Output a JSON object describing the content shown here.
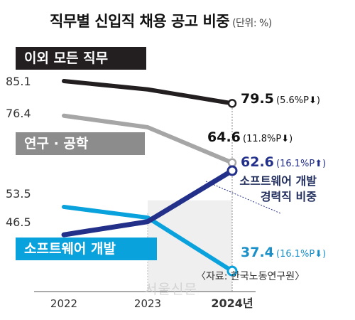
{
  "title": "직무별 신입직 채용 공고 비중",
  "unit": "(단위: %)",
  "source": "〈자료: 한국노동연구원〉",
  "watermark": "서울신문",
  "labels": {
    "other_jobs": "이외 모든 직무",
    "research_eng": "연구 · 공학",
    "sw_dev": "소프트웨어 개발",
    "sw_experienced_line1": "소프트웨어 개발",
    "sw_experienced_line2": "경력직 비중"
  },
  "colors": {
    "other_jobs": "#231f20",
    "research_eng": "#a6a6a6",
    "sw_dev": "#0aa2dc",
    "sw_experienced": "#23308a",
    "shade": "#efefef"
  },
  "chart_data": {
    "type": "line",
    "categories": [
      "2022",
      "2023",
      "2024년"
    ],
    "series": [
      {
        "name": "이외 모든 직무",
        "values": [
          85.1,
          83.0,
          79.5
        ],
        "labels": {
          "start": "85.1",
          "end_value": "79.5",
          "end_change": "(5.6%P⬇)"
        }
      },
      {
        "name": "연구 · 공학",
        "values": [
          76.4,
          73.5,
          64.6
        ],
        "labels": {
          "start": "76.4",
          "end_value": "64.6",
          "end_change": "(11.8%P⬇)"
        }
      },
      {
        "name": "소프트웨어 개발",
        "values": [
          53.5,
          50.8,
          37.4
        ],
        "labels": {
          "start": "53.5",
          "end_value": "37.4",
          "end_change": "(16.1%P⬇)"
        }
      },
      {
        "name": "소프트웨어 개발 경력직 비중",
        "values": [
          46.5,
          49.8,
          62.6
        ],
        "labels": {
          "start": "46.5",
          "end_value": "62.6",
          "end_change": "(16.1%P⬆)"
        }
      }
    ]
  }
}
